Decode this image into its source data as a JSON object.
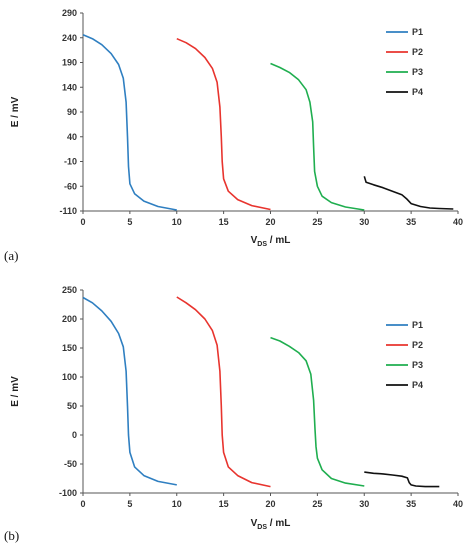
{
  "chart_data": [
    {
      "type": "line",
      "panel_label": "(a)",
      "xlabel": "VDS / mL",
      "xlabel_main": "V",
      "xlabel_sub": "DS",
      "xlabel_rest": " / mL",
      "ylabel": "E / mV",
      "xlim": [
        0,
        40
      ],
      "ylim": [
        -110,
        290
      ],
      "xticks": [
        0,
        5,
        10,
        15,
        20,
        25,
        30,
        35,
        40
      ],
      "yticks": [
        -110,
        -60,
        -10,
        40,
        90,
        140,
        190,
        240,
        290
      ],
      "grid": false,
      "legend_position": "top-right",
      "series": [
        {
          "name": "P1",
          "color": "#2f7fc1",
          "points": [
            [
              0,
              246
            ],
            [
              1,
              238
            ],
            [
              2,
              226
            ],
            [
              3,
              208
            ],
            [
              3.8,
              186
            ],
            [
              4.3,
              158
            ],
            [
              4.6,
              110
            ],
            [
              4.75,
              40
            ],
            [
              4.85,
              -20
            ],
            [
              5,
              -55
            ],
            [
              5.5,
              -75
            ],
            [
              6.5,
              -90
            ],
            [
              8,
              -101
            ],
            [
              10,
              -108
            ]
          ]
        },
        {
          "name": "P2",
          "color": "#e8342e",
          "points": [
            [
              10,
              238
            ],
            [
              11,
              230
            ],
            [
              12,
              218
            ],
            [
              13,
              200
            ],
            [
              13.8,
              178
            ],
            [
              14.3,
              150
            ],
            [
              14.6,
              100
            ],
            [
              14.75,
              40
            ],
            [
              14.85,
              -10
            ],
            [
              15,
              -45
            ],
            [
              15.5,
              -70
            ],
            [
              16.5,
              -87
            ],
            [
              18,
              -99
            ],
            [
              20,
              -107
            ]
          ]
        },
        {
          "name": "P3",
          "color": "#1fae4f",
          "points": [
            [
              20,
              188
            ],
            [
              21,
              180
            ],
            [
              22,
              170
            ],
            [
              23,
              155
            ],
            [
              23.8,
              135
            ],
            [
              24.2,
              110
            ],
            [
              24.5,
              70
            ],
            [
              24.6,
              20
            ],
            [
              24.7,
              -30
            ],
            [
              25,
              -60
            ],
            [
              25.5,
              -80
            ],
            [
              26.5,
              -93
            ],
            [
              28,
              -102
            ],
            [
              30,
              -108
            ]
          ]
        },
        {
          "name": "P4",
          "color": "#111111",
          "points": [
            [
              30,
              -40
            ],
            [
              30.2,
              -52
            ],
            [
              31,
              -57
            ],
            [
              32,
              -63
            ],
            [
              33,
              -70
            ],
            [
              34,
              -77
            ],
            [
              34.5,
              -85
            ],
            [
              35,
              -95
            ],
            [
              36,
              -101
            ],
            [
              37,
              -104
            ],
            [
              38,
              -105
            ],
            [
              39.5,
              -106
            ]
          ]
        }
      ]
    },
    {
      "type": "line",
      "panel_label": "(b)",
      "xlabel": "VDS / mL",
      "xlabel_main": "V",
      "xlabel_sub": "DS",
      "xlabel_rest": " / mL",
      "ylabel": "E / mV",
      "xlim": [
        0,
        40
      ],
      "ylim": [
        -100,
        250
      ],
      "xticks": [
        0,
        5,
        10,
        15,
        20,
        25,
        30,
        35,
        40
      ],
      "yticks": [
        -100,
        -50,
        0,
        50,
        100,
        150,
        200,
        250
      ],
      "grid": false,
      "legend_position": "top-right",
      "series": [
        {
          "name": "P1",
          "color": "#2f7fc1",
          "points": [
            [
              0,
              237
            ],
            [
              1,
              228
            ],
            [
              2,
              214
            ],
            [
              3,
              196
            ],
            [
              3.8,
              175
            ],
            [
              4.3,
              152
            ],
            [
              4.6,
              110
            ],
            [
              4.75,
              50
            ],
            [
              4.85,
              0
            ],
            [
              5,
              -30
            ],
            [
              5.5,
              -55
            ],
            [
              6.5,
              -70
            ],
            [
              8,
              -80
            ],
            [
              10,
              -86
            ]
          ]
        },
        {
          "name": "P2",
          "color": "#e8342e",
          "points": [
            [
              10,
              238
            ],
            [
              11,
              228
            ],
            [
              12,
              216
            ],
            [
              13,
              200
            ],
            [
              13.8,
              180
            ],
            [
              14.3,
              155
            ],
            [
              14.6,
              110
            ],
            [
              14.75,
              50
            ],
            [
              14.85,
              0
            ],
            [
              15,
              -30
            ],
            [
              15.5,
              -55
            ],
            [
              16.5,
              -70
            ],
            [
              18,
              -82
            ],
            [
              20,
              -89
            ]
          ]
        },
        {
          "name": "P3",
          "color": "#1fae4f",
          "points": [
            [
              20,
              168
            ],
            [
              21,
              162
            ],
            [
              22,
              153
            ],
            [
              23,
              142
            ],
            [
              23.8,
              128
            ],
            [
              24.3,
              105
            ],
            [
              24.6,
              60
            ],
            [
              24.75,
              10
            ],
            [
              24.85,
              -20
            ],
            [
              25,
              -40
            ],
            [
              25.5,
              -60
            ],
            [
              26.5,
              -75
            ],
            [
              28,
              -83
            ],
            [
              30,
              -88
            ]
          ]
        },
        {
          "name": "P4",
          "color": "#111111",
          "points": [
            [
              30,
              -64
            ],
            [
              31,
              -66
            ],
            [
              32,
              -67
            ],
            [
              33,
              -69
            ],
            [
              34,
              -71
            ],
            [
              34.6,
              -74
            ],
            [
              34.8,
              -82
            ],
            [
              35,
              -86
            ],
            [
              35.5,
              -88
            ],
            [
              36.5,
              -89
            ],
            [
              38,
              -89
            ]
          ]
        }
      ]
    }
  ]
}
